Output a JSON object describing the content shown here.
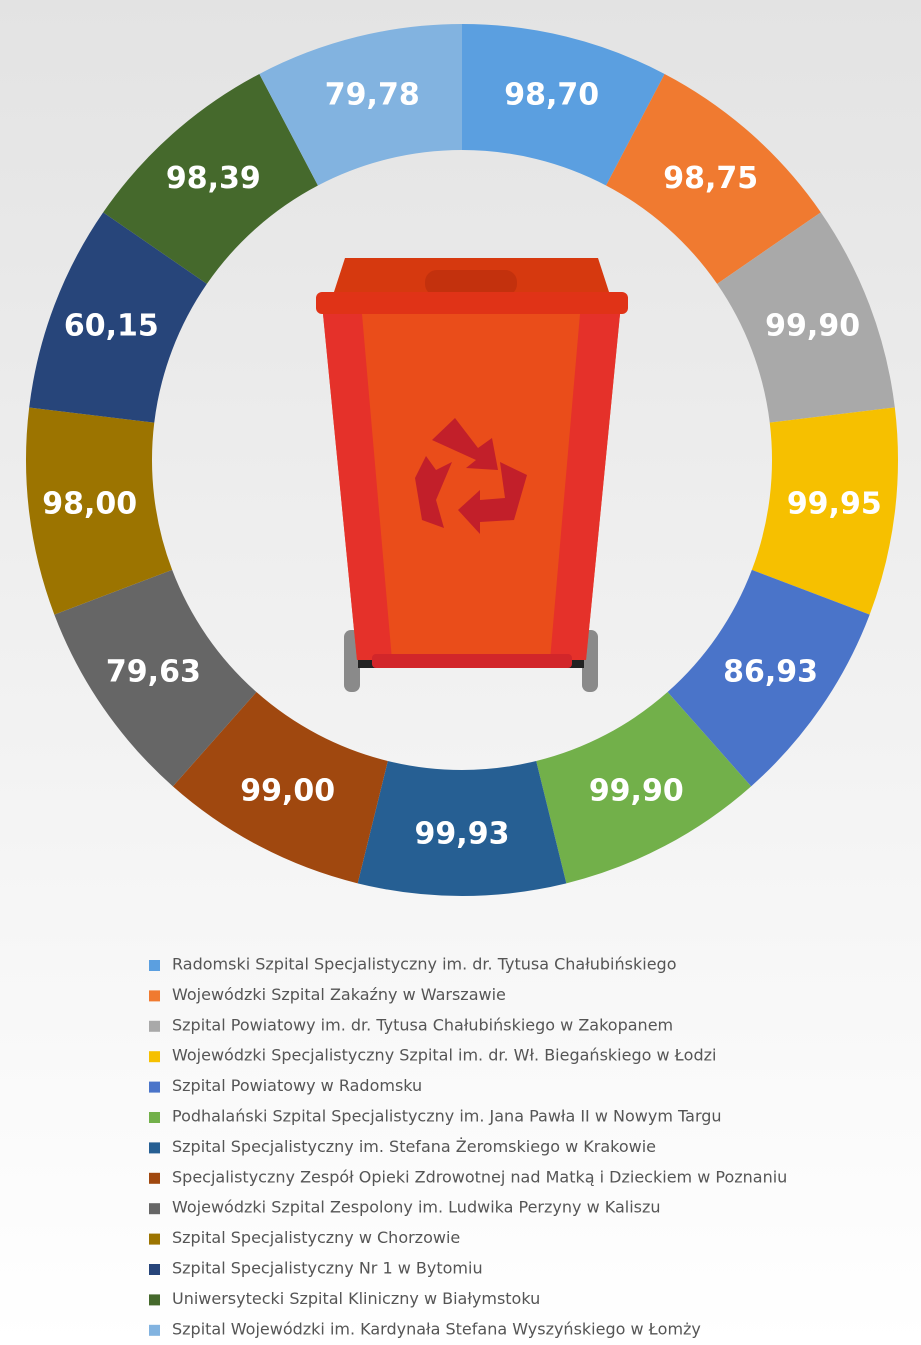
{
  "chart_data": {
    "type": "donut",
    "categories": [
      "Radomski Szpital Specjalistyczny im. dr. Tytusa Chałubińskiego",
      "Wojewódzki Szpital Zakaźny w Warszawie",
      "Szpital Powiatowy im. dr. Tytusa Chałubińskiego w Zakopanem",
      "Wojewódzki Specjalistyczny Szpital im. dr. Wł. Biegańskiego w Łodzi",
      "Szpital Powiatowy w Radomsku",
      "Podhalański Szpital Specjalistyczny im. Jana Pawła II w Nowym Targu",
      "Szpital Specjalistyczny im. Stefana Żeromskiego w Krakowie",
      "Specjalistyczny Zespół Opieki Zdrowotnej nad Matką i Dzieckiem w Poznaniu",
      "Wojewódzki Szpital Zespolony im. Ludwika Perzyny w Kaliszu",
      "Szpital Specjalistyczny w Chorzowie",
      "Szpital Specjalistyczny Nr 1 w Bytomiu",
      "Uniwersytecki Szpital Kliniczny w Białymstoku",
      "Szpital Wojewódzki im. Kardynała Stefana Wyszyńskiego w Łomży"
    ],
    "values": [
      98.7,
      98.75,
      99.9,
      99.95,
      86.93,
      99.9,
      99.93,
      99.0,
      79.63,
      98.0,
      60.15,
      98.39,
      79.78
    ],
    "value_labels": [
      "98,70",
      "98,75",
      "99,90",
      "99,95",
      "86,93",
      "99,90",
      "99,93",
      "99,00",
      "79,63",
      "98,00",
      "60,15",
      "98,39",
      "79,78"
    ],
    "colors": [
      "#5b9fe0",
      "#f07a30",
      "#a9a9a9",
      "#f6c000",
      "#4a74c9",
      "#72b04a",
      "#265f93",
      "#a0480f",
      "#666666",
      "#9c7400",
      "#27457a",
      "#45692c",
      "#82b3e0"
    ]
  }
}
